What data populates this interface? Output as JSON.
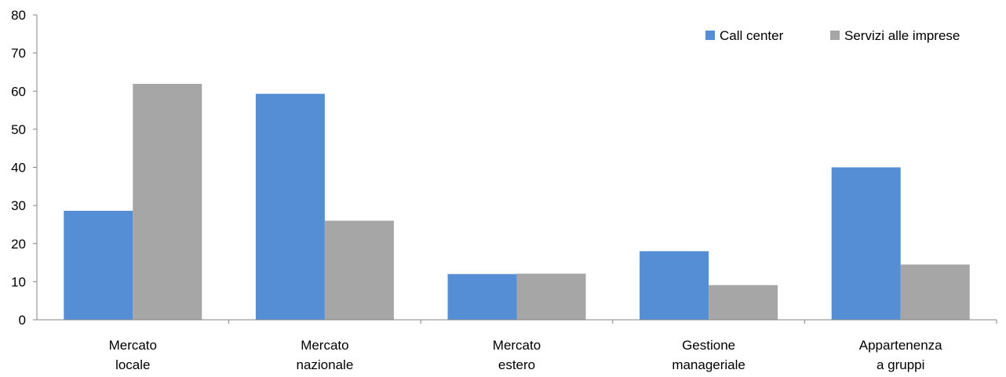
{
  "chart_data": {
    "type": "bar",
    "categories": [
      [
        "Mercato",
        "locale"
      ],
      [
        "Mercato",
        "nazionale"
      ],
      [
        "Mercato",
        "estero"
      ],
      [
        "Gestione",
        "manageriale"
      ],
      [
        "Appartenenza",
        "a gruppi"
      ]
    ],
    "series": [
      {
        "name": "Call center",
        "color": "#558ED5",
        "values": [
          28.6,
          59.3,
          12.0,
          18.0,
          40.0
        ]
      },
      {
        "name": "Servizi alle imprese",
        "color": "#A6A6A6",
        "values": [
          61.9,
          26.0,
          12.1,
          9.1,
          14.5
        ]
      }
    ],
    "ylim": [
      0,
      80
    ],
    "yticks": [
      0,
      10,
      20,
      30,
      40,
      50,
      60,
      70,
      80
    ],
    "grid": false,
    "legend": "top-right",
    "axis_color": "#868686"
  }
}
